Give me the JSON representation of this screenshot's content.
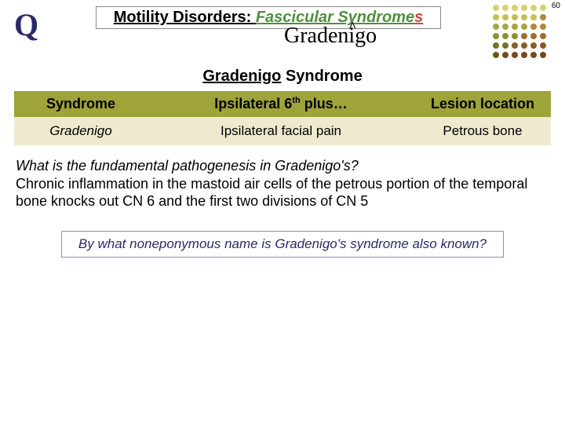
{
  "page_number": "60",
  "q_mark": "Q",
  "title": {
    "prefix": "Motility Disorders: ",
    "green": "Fascicular Syndrome",
    "red_s": "s"
  },
  "caret": "^",
  "handwritten": "Gradenigo",
  "section_title": {
    "under": "Gradenigo",
    "rest": " Syndrome"
  },
  "table": {
    "headers": {
      "c1": "Syndrome",
      "c2_pre": "Ipsilateral 6",
      "c2_sup": "th",
      "c2_post": " plus…",
      "c3": "Lesion location"
    },
    "row": {
      "c1": "Gradenigo",
      "c2": "Ipsilateral facial pain",
      "c3": "Petrous bone"
    }
  },
  "qa": {
    "question": "What is the fundamental pathogenesis in Gradenigo's?",
    "answer": "Chronic inflammation in the mastoid air cells of the petrous portion of the temporal bone knocks out CN 6 and the first two divisions of CN 5"
  },
  "followup": "By what noneponymous name is Gradenigo's syndrome also known?",
  "dot_colors": [
    [
      "#d8d070",
      "#d8d070",
      "#d8d070",
      "#d8d070",
      "#d8d070",
      "#d8d070"
    ],
    [
      "#c7bf55",
      "#c7bf55",
      "#c7bf55",
      "#c7bf55",
      "#c7bf55",
      "#b5863d"
    ],
    [
      "#a8a642",
      "#a8a642",
      "#a8a642",
      "#a8a642",
      "#b5863d",
      "#b5863d"
    ],
    [
      "#8f9030",
      "#8f9030",
      "#8f9030",
      "#a06f30",
      "#a06f30",
      "#a06f30"
    ],
    [
      "#7a7024",
      "#7a7024",
      "#8a5c26",
      "#8a5c26",
      "#8a5c26",
      "#8a5c26"
    ],
    [
      "#6a5a1a",
      "#74491c",
      "#74491c",
      "#74491c",
      "#74491c",
      "#74491c"
    ]
  ]
}
